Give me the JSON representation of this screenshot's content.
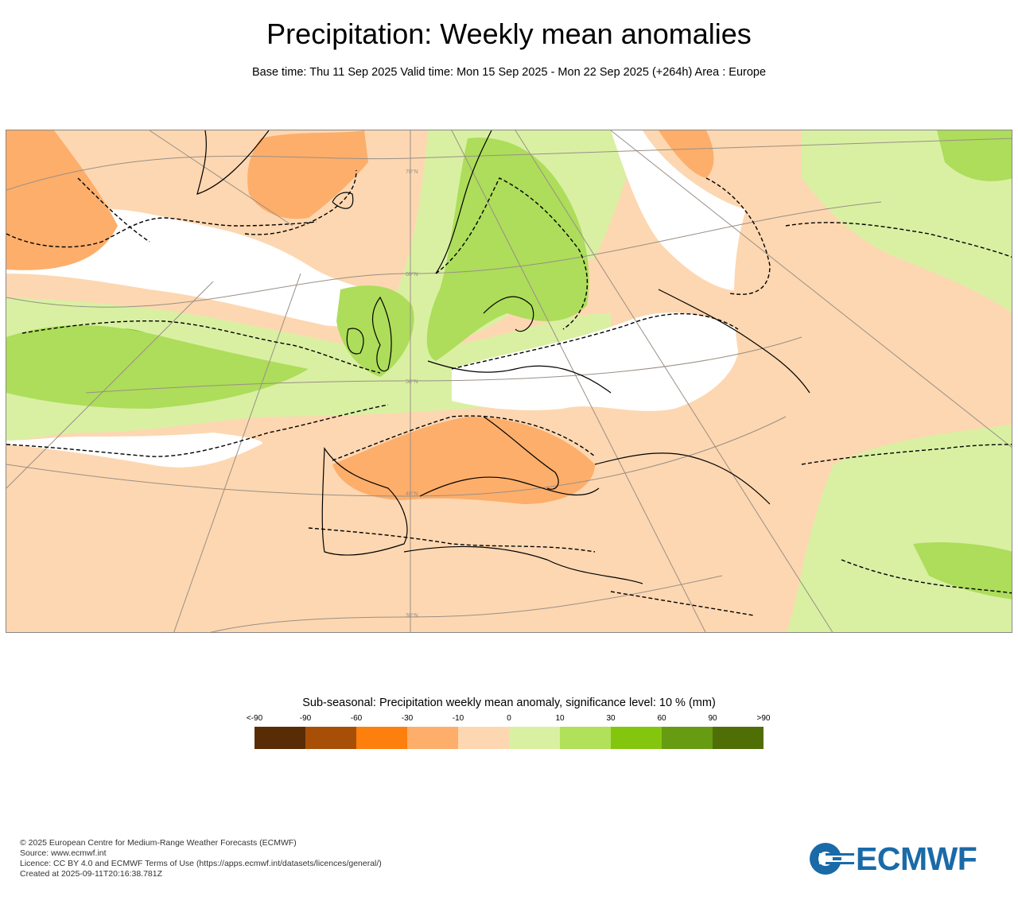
{
  "header": {
    "title": "Precipitation: Weekly mean anomalies",
    "subtitle": "Base time: Thu 11 Sep 2025 Valid time: Mon 15 Sep 2025 - Mon 22 Sep 2025 (+264h) Area : Europe"
  },
  "map": {
    "area": "Europe",
    "latitude_labels": [
      "70°N",
      "60°N",
      "50°N",
      "40°N",
      "30°N"
    ],
    "colors": {
      "neutral": "#ffffff",
      "dry_light": "#fdd7b1",
      "dry_moderate": "#fdae6b",
      "dry_strong": "#fd8d3c",
      "wet_light": "#d9f0a3",
      "wet_moderate": "#addd5a",
      "wet_strong": "#78c51e",
      "coastline": "#000000",
      "graticule": "#9a8f86"
    }
  },
  "legend": {
    "title": "Sub-seasonal: Precipitation weekly mean anomaly, significance level: 10 % (mm)",
    "labels": [
      "<-90",
      "-90",
      "-60",
      "-30",
      "-10",
      "0",
      "10",
      "30",
      "60",
      "90",
      ">90"
    ],
    "colors": [
      "#5a2c06",
      "#a84f07",
      "#fd7f0d",
      "#fdae6b",
      "#fdd7b1",
      "#d9f0a3",
      "#b1e05a",
      "#84c60e",
      "#679c12",
      "#4f6e06"
    ]
  },
  "footer": {
    "lines": [
      "© 2025 European Centre for Medium-Range Weather Forecasts (ECMWF)",
      "Source: www.ecmwf.int",
      "Licence: CC BY 4.0 and ECMWF Terms of Use (https://apps.ecmwf.int/datasets/licences/general/)",
      "Created at 2025-09-11T20:16:38.781Z"
    ]
  },
  "logo": {
    "text": "ECMWF",
    "color": "#1a6aa8"
  }
}
